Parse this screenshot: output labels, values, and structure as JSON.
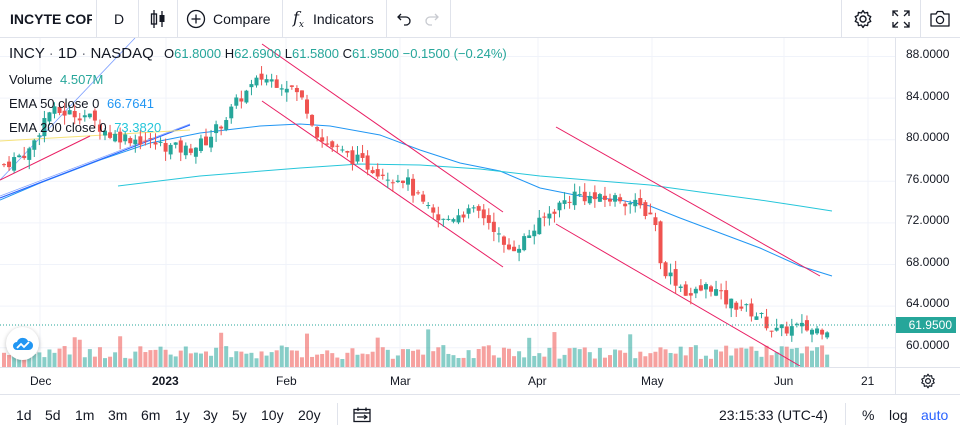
{
  "toolbar": {
    "symbol": "INCYTE COF",
    "interval": "D",
    "compare_label": "Compare",
    "indicators_label": "Indicators"
  },
  "legend": {
    "symbol": "INCY",
    "interval": "1D",
    "exchange": "NASDAQ",
    "o_label": "O",
    "o": "61.8000",
    "h_label": "H",
    "h": "62.6900",
    "l_label": "L",
    "l": "61.5800",
    "c_label": "C",
    "c": "61.9500",
    "change": "−0.1500 (−0.24%)",
    "volume_label": "Volume",
    "volume": "4.507M",
    "ema50_label": "EMA 50 close 0",
    "ema50": "66.7641",
    "ema200_label": "EMA 200 close 0",
    "ema200": "73.3820"
  },
  "price_axis": {
    "ticks": [
      "88.0000",
      "84.0000",
      "80.0000",
      "76.0000",
      "72.0000",
      "68.0000",
      "64.0000",
      "60.0000"
    ],
    "last_price": "61.9500"
  },
  "time_axis": {
    "labels": [
      "Dec",
      "2023",
      "Feb",
      "Mar",
      "Apr",
      "May",
      "Jun",
      "21"
    ]
  },
  "bottombar": {
    "ranges": [
      "1d",
      "5d",
      "1m",
      "3m",
      "6m",
      "1y",
      "3y",
      "5y",
      "10y",
      "20y"
    ],
    "clock": "23:15:33 (UTC-4)",
    "percent": "%",
    "log": "log",
    "auto": "auto"
  },
  "colors": {
    "up": "#26a69a",
    "down": "#ef5350",
    "ema50": "#2196f3",
    "ema200": "#26c6da",
    "channel": "#e91e63",
    "accent": "#2962ff"
  },
  "icons": [
    "candles-icon",
    "add-circle-icon",
    "fx-icon",
    "undo-icon",
    "redo-icon",
    "gear-icon",
    "fullscreen-icon",
    "camera-icon",
    "calendar-range-icon",
    "time-axis-gear-icon",
    "tradingview-logo-icon"
  ]
}
